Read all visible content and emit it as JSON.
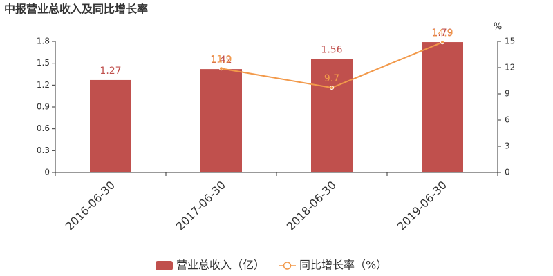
{
  "chart_data": {
    "type": "bar",
    "title": "中报营业总收入及同比增长率",
    "categories": [
      "2016-06-30",
      "2017-06-30",
      "2018-06-30",
      "2019-06-30"
    ],
    "series": [
      {
        "name": "营业总收入（亿）",
        "type": "bar",
        "color": "#c0504d",
        "values": [
          1.27,
          1.42,
          1.56,
          1.79
        ]
      },
      {
        "name": "同比增长率（%）",
        "type": "line",
        "axis": "y2",
        "color": "#f2994a",
        "values": [
          null,
          11.9,
          9.7,
          14.9
        ]
      }
    ],
    "ylim": [
      0,
      1.8
    ],
    "yticks": [
      0,
      0.3,
      0.6,
      0.9,
      1.2,
      1.5,
      1.8
    ],
    "y2lim": [
      0,
      15
    ],
    "y2ticks": [
      0,
      3,
      6,
      9,
      12,
      15
    ],
    "y2label": "%",
    "legend": "bottom"
  }
}
